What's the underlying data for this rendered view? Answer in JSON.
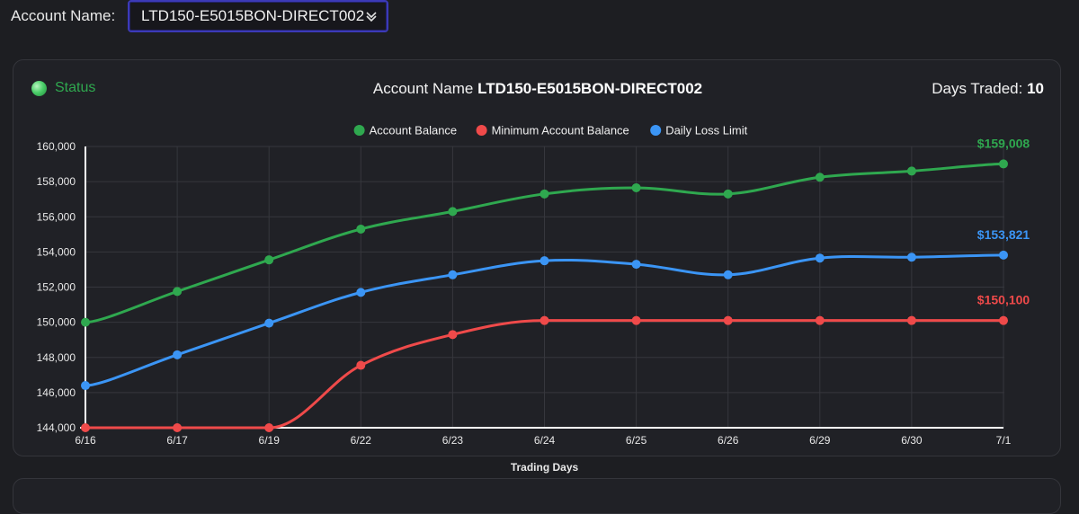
{
  "header": {
    "account_label": "Account Name:",
    "selected_account": "LTD150-E5015BON-DIRECT002"
  },
  "card": {
    "status_label": "Status",
    "title_prefix": "Account Name ",
    "title_account": "LTD150-E5015BON-DIRECT002",
    "days_label": "Days Traded: ",
    "days_value": "10"
  },
  "chart_data": {
    "type": "line",
    "x": [
      "6/16",
      "6/17",
      "6/19",
      "6/22",
      "6/23",
      "6/24",
      "6/25",
      "6/26",
      "6/29",
      "6/30",
      "7/1"
    ],
    "xlabel": "Trading Days",
    "ylabel": "",
    "ylim": [
      144000,
      160000
    ],
    "yticks": [
      144000,
      146000,
      148000,
      150000,
      152000,
      154000,
      156000,
      158000,
      160000
    ],
    "ytick_labels": [
      "144,000",
      "146,000",
      "148,000",
      "150,000",
      "152,000",
      "154,000",
      "156,000",
      "158,000",
      "160,000"
    ],
    "grid": true,
    "legend_position": "top-center",
    "series": [
      {
        "name": "Account Balance",
        "color": "#2fa84f",
        "values": [
          150000,
          151750,
          153550,
          155300,
          156300,
          157300,
          157650,
          157300,
          158250,
          158600,
          159008
        ],
        "end_label": "$159,008"
      },
      {
        "name": "Minimum Account Balance",
        "color": "#ef4a4a",
        "values": [
          144000,
          144000,
          144000,
          147550,
          149300,
          150100,
          150100,
          150100,
          150100,
          150100,
          150100
        ],
        "end_label": "$150,100"
      },
      {
        "name": "Daily Loss Limit",
        "color": "#3b95f5",
        "values": [
          146400,
          148150,
          149950,
          151700,
          152700,
          153500,
          153300,
          152700,
          153650,
          153700,
          153821
        ],
        "end_label": "$153,821"
      }
    ]
  }
}
